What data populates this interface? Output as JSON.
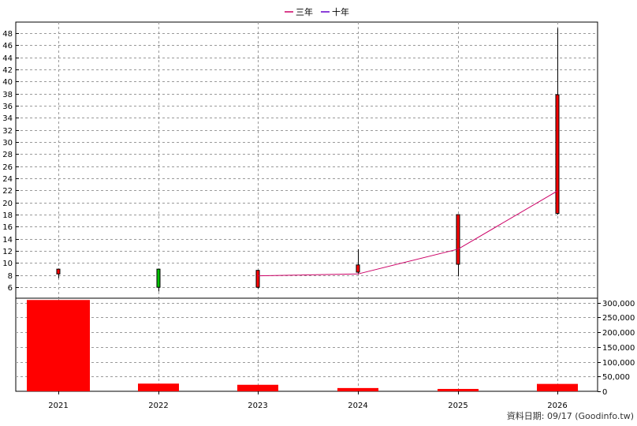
{
  "chart_data": [
    {
      "type": "candlestick",
      "legend": [
        {
          "name": "三年",
          "color": "#cc0066"
        },
        {
          "name": "十年",
          "color": "#6600cc"
        }
      ],
      "legend_placement": "top-center",
      "categories": [
        "2021",
        "2022",
        "2023",
        "2024",
        "2025",
        "2026"
      ],
      "y_ticks": [
        "6",
        "8",
        "10",
        "12",
        "14",
        "16",
        "18",
        "20",
        "22",
        "24",
        "26",
        "28",
        "30",
        "32",
        "34",
        "36",
        "38",
        "40",
        "42",
        "44",
        "46",
        "48"
      ],
      "ylim": [
        4.2,
        49.8
      ],
      "y_axis_side": "left",
      "grid": true,
      "candles": [
        {
          "x": "2021",
          "open": 8.2,
          "close": 9.0,
          "high": 9.0,
          "low": 7.5,
          "color": "#ff0000"
        },
        {
          "x": "2022",
          "open": 9.0,
          "close": 6.0,
          "high": 9.0,
          "low": 5.3,
          "color": "#00c000"
        },
        {
          "x": "2023",
          "open": 6.0,
          "close": 8.8,
          "high": 8.8,
          "low": 5.8,
          "color": "#ff0000"
        },
        {
          "x": "2024",
          "open": 8.5,
          "close": 9.7,
          "high": 12.3,
          "low": 8.3,
          "color": "#ff0000"
        },
        {
          "x": "2025",
          "open": 9.8,
          "close": 18.0,
          "high": 18.0,
          "low": 7.8,
          "color": "#ff0000"
        },
        {
          "x": "2026",
          "open": 18.2,
          "close": 37.8,
          "high": 48.8,
          "low": 18.0,
          "color": "#ff0000"
        }
      ],
      "series": [
        {
          "name": "三年",
          "color": "#cc0066",
          "x": [
            "2023",
            "2024",
            "2025",
            "2026"
          ],
          "values": [
            7.9,
            8.2,
            12.3,
            21.9
          ]
        }
      ]
    },
    {
      "type": "bar",
      "categories": [
        "2021",
        "2022",
        "2023",
        "2024",
        "2025",
        "2026"
      ],
      "values": [
        309000,
        26000,
        22000,
        11000,
        8000,
        25000
      ],
      "y_ticks": [
        "0",
        "50,000",
        "100,000",
        "150,000",
        "200,000",
        "250,000",
        "300,000"
      ],
      "ylim": [
        0,
        315000
      ],
      "y_axis_side": "right",
      "grid": true,
      "bar_color": "#ff0000"
    }
  ],
  "footer": "資料日期: 09/17  (Goodinfo.tw)"
}
